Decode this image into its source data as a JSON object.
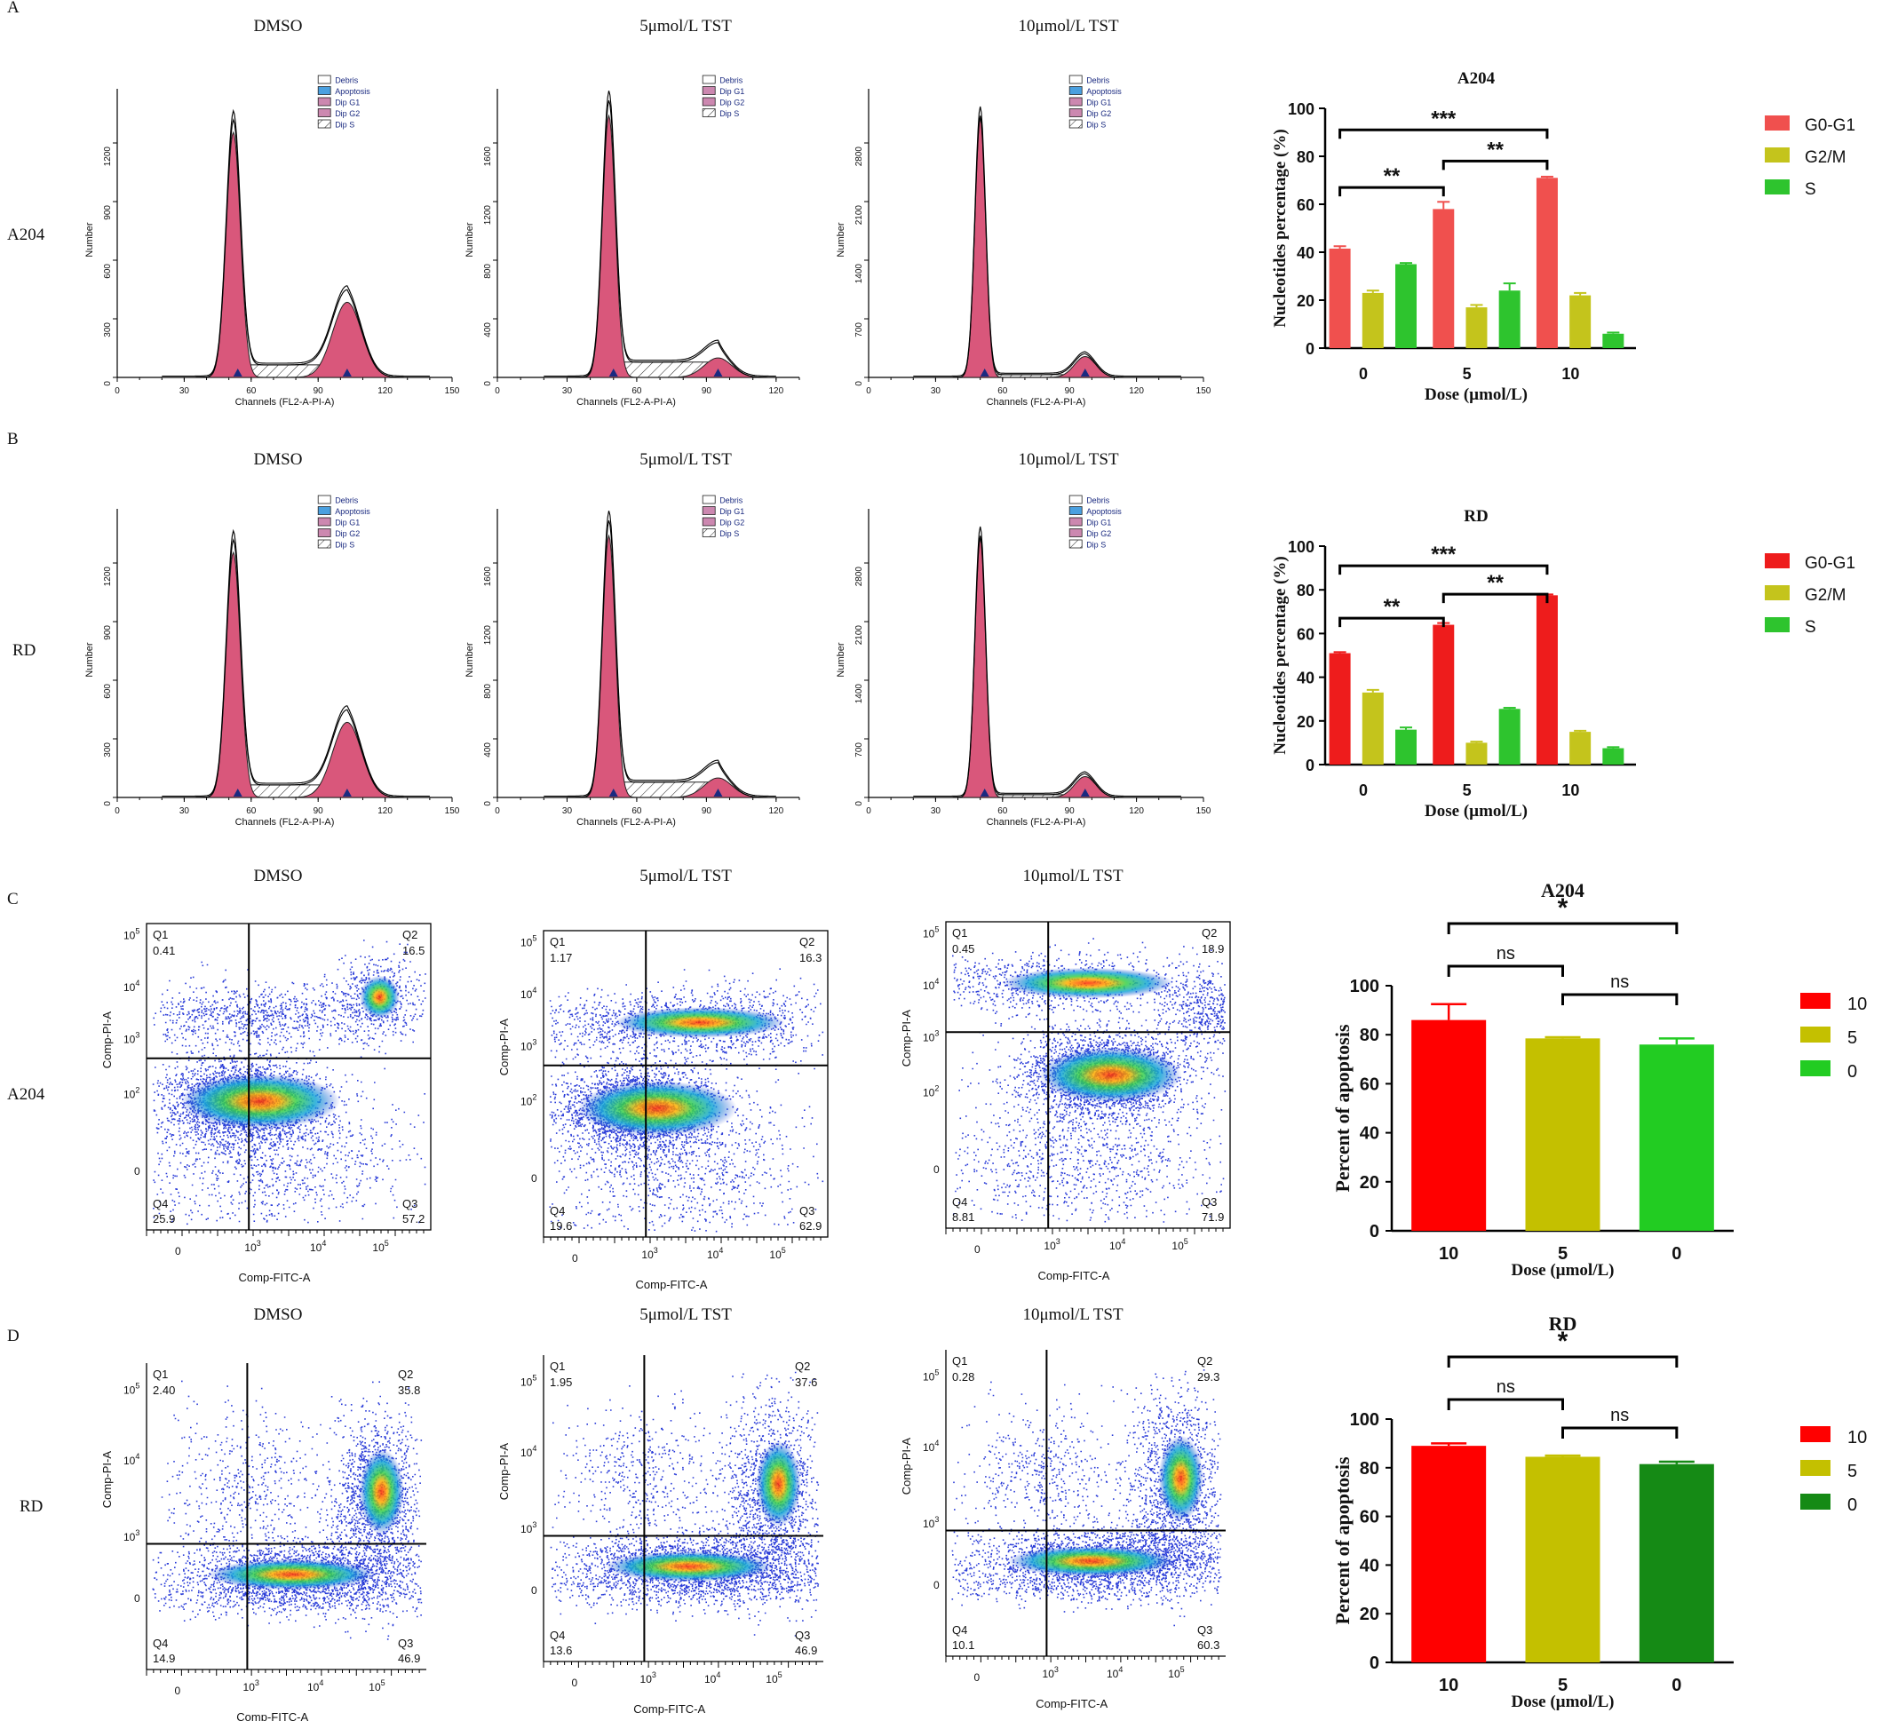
{
  "panel_letters": [
    "A",
    "B",
    "C",
    "D"
  ],
  "row_labels": {
    "A": "A204",
    "B": "RD",
    "C": "A204",
    "D": "RD"
  },
  "treatments": [
    "DMSO",
    "5μmol/L TST",
    "10μmol/L TST"
  ],
  "histogram": {
    "x_label": "Channels (FL2-A-PI-A)",
    "y_label": "Number",
    "legend_full": [
      "Debris",
      "Apoptosis",
      "Dip G1",
      "Dip G2",
      "Dip S"
    ],
    "legend_short": [
      "Debris",
      "Dip G1",
      "Dip G2",
      "Dip S"
    ],
    "x_ticks_full": [
      0,
      30,
      60,
      90,
      120,
      150
    ],
    "x_ticks_short": [
      0,
      30,
      60,
      90,
      120
    ],
    "y_ticks": [
      [
        "0",
        "300",
        "600",
        "900",
        "1200"
      ],
      [
        "0",
        "400",
        "800",
        "1200",
        "1600"
      ],
      [
        "0",
        "700",
        "1400",
        "2100",
        "2800"
      ]
    ]
  },
  "flow": {
    "x_label": "Comp-FITC-A",
    "y_label": "Comp-PI-A",
    "quadrants": [
      "Q1",
      "Q2",
      "Q3",
      "Q4"
    ],
    "values": {
      "C": [
        [
          "0.41",
          "16.5",
          "57.2",
          "25.9"
        ],
        [
          "1.17",
          "16.3",
          "62.9",
          "19.6"
        ],
        [
          "0.45",
          "18.9",
          "71.9",
          "8.81"
        ]
      ],
      "D": [
        [
          "2.40",
          "35.8",
          "46.9",
          "14.9"
        ],
        [
          "1.95",
          "37.6",
          "46.9",
          "13.6"
        ],
        [
          "0.28",
          "29.3",
          "60.3",
          "10.1"
        ]
      ]
    }
  },
  "chart_data": [
    {
      "type": "bar",
      "title": "A204",
      "xlabel": "Dose (µmol/L)",
      "ylabel": "Nucleotides percentage (%)",
      "ylim": [
        0,
        100
      ],
      "y_ticks": [
        0,
        20,
        40,
        60,
        80,
        100
      ],
      "categories": [
        "0",
        "5",
        "10"
      ],
      "series": [
        {
          "name": "G0-G1",
          "values": [
            41.5,
            58,
            71
          ],
          "errors": [
            1,
            3,
            0.5
          ],
          "color": "#f0504e"
        },
        {
          "name": "G2/M",
          "values": [
            23,
            17,
            22
          ],
          "errors": [
            1,
            1,
            1
          ],
          "color": "#c4c41c"
        },
        {
          "name": "S",
          "values": [
            35,
            24,
            6
          ],
          "errors": [
            0.5,
            3,
            0.5
          ],
          "color": "#2ec42e"
        }
      ],
      "significance": [
        {
          "from": 0,
          "to": 1,
          "label": "**"
        },
        {
          "from": 1,
          "to": 2,
          "label": "**"
        },
        {
          "from": 0,
          "to": 2,
          "label": "***"
        }
      ]
    },
    {
      "type": "bar",
      "title": "RD",
      "xlabel": "Dose (µmol/L)",
      "ylabel": "Nucleotides percentage (%)",
      "ylim": [
        0,
        100
      ],
      "y_ticks": [
        0,
        20,
        40,
        60,
        80,
        100
      ],
      "categories": [
        "0",
        "5",
        "10"
      ],
      "series": [
        {
          "name": "G0-G1",
          "values": [
            51,
            64,
            77.5
          ],
          "errors": [
            0.5,
            0.8,
            0.4
          ],
          "color": "#ee1c1c"
        },
        {
          "name": "G2/M",
          "values": [
            33,
            10,
            15
          ],
          "errors": [
            1.2,
            0.5,
            0.5
          ],
          "color": "#c4c41c"
        },
        {
          "name": "S",
          "values": [
            16,
            25.5,
            7.5
          ],
          "errors": [
            1,
            0.5,
            0.5
          ],
          "color": "#2ec42e"
        }
      ],
      "significance": [
        {
          "from": 0,
          "to": 1,
          "label": "**"
        },
        {
          "from": 1,
          "to": 2,
          "label": "**"
        },
        {
          "from": 0,
          "to": 2,
          "label": "***"
        }
      ]
    },
    {
      "type": "bar",
      "title": "A204",
      "xlabel": "Dose (µmol/L)",
      "ylabel": "Percent of apoptosis",
      "ylim": [
        0,
        100
      ],
      "y_ticks": [
        0,
        20,
        40,
        60,
        80,
        100
      ],
      "categories": [
        "10",
        "5",
        "0"
      ],
      "values": [
        86,
        78.5,
        76
      ],
      "errors": [
        6.5,
        0.5,
        2.5
      ],
      "colors": [
        "#ff0000",
        "#c4c000",
        "#22cc22"
      ],
      "legend": [
        "10",
        "5",
        "0"
      ],
      "significance": [
        {
          "from": 0,
          "to": 1,
          "label": "ns"
        },
        {
          "from": 1,
          "to": 2,
          "label": "ns"
        },
        {
          "from": 0,
          "to": 2,
          "label": "*"
        }
      ]
    },
    {
      "type": "bar",
      "title": "RD",
      "xlabel": "Dose (µmol/L)",
      "ylabel": "Percent of apoptosis",
      "ylim": [
        0,
        100
      ],
      "y_ticks": [
        0,
        20,
        40,
        60,
        80,
        100
      ],
      "categories": [
        "10",
        "5",
        "0"
      ],
      "values": [
        89,
        84.5,
        81.5
      ],
      "errors": [
        1,
        0.5,
        1
      ],
      "colors": [
        "#ff0000",
        "#c4c000",
        "#158a15"
      ],
      "legend": [
        "10",
        "5",
        "0"
      ],
      "significance": [
        {
          "from": 0,
          "to": 1,
          "label": "ns"
        },
        {
          "from": 1,
          "to": 2,
          "label": "ns"
        },
        {
          "from": 0,
          "to": 2,
          "label": "*"
        }
      ]
    }
  ]
}
